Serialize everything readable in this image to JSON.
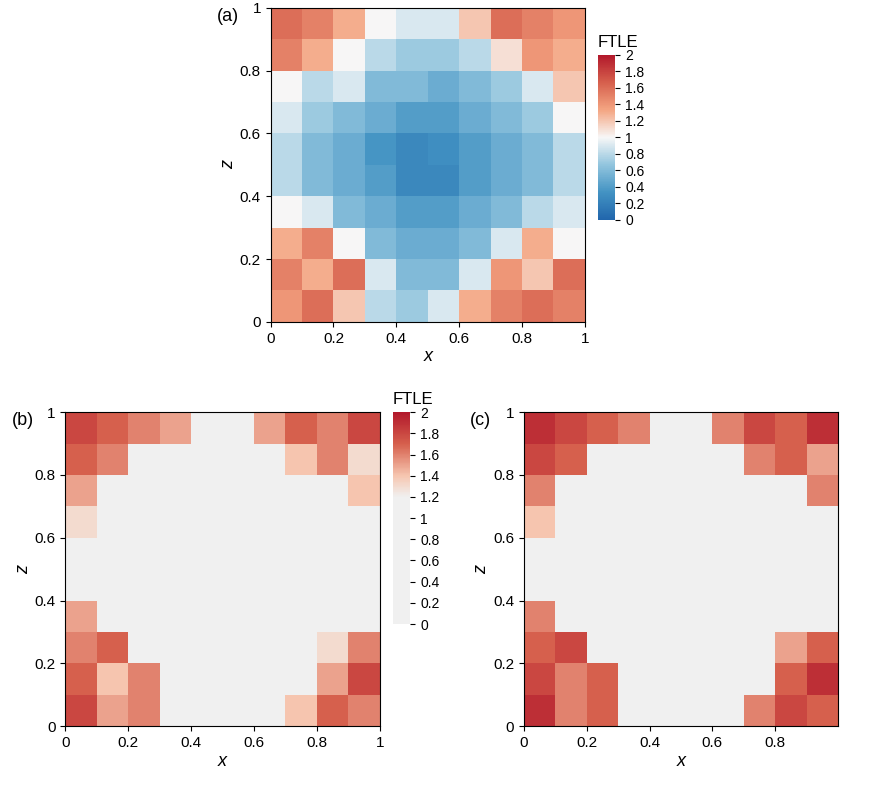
{
  "chart_data": [
    {
      "type": "heatmap",
      "panel_label": "(a)",
      "xlabel": "x",
      "ylabel": "z",
      "x": [
        0.05,
        0.15,
        0.25,
        0.35,
        0.45,
        0.55,
        0.65,
        0.75,
        0.85,
        0.95
      ],
      "y": [
        0.05,
        0.15,
        0.25,
        0.35,
        0.45,
        0.55,
        0.65,
        0.75,
        0.85,
        0.95
      ],
      "xlim": [
        0,
        1
      ],
      "ylim": [
        0,
        1
      ],
      "xticks": [
        0,
        0.2,
        0.4,
        0.6,
        0.8,
        1
      ],
      "yticks": [
        0,
        0.2,
        0.4,
        0.6,
        0.8,
        1
      ],
      "cells": [
        [
          1.4,
          1.6,
          1.2,
          0.8,
          0.7,
          0.9,
          1.3,
          1.5,
          1.6,
          1.5
        ],
        [
          1.5,
          1.3,
          1.6,
          0.9,
          0.6,
          0.6,
          0.9,
          1.4,
          1.2,
          1.6
        ],
        [
          1.3,
          1.5,
          1.0,
          0.6,
          0.5,
          0.5,
          0.6,
          0.9,
          1.3,
          1.0
        ],
        [
          1.0,
          0.9,
          0.6,
          0.5,
          0.4,
          0.4,
          0.5,
          0.6,
          0.8,
          0.9
        ],
        [
          0.8,
          0.6,
          0.5,
          0.4,
          0.25,
          0.25,
          0.4,
          0.5,
          0.6,
          0.8
        ],
        [
          0.8,
          0.6,
          0.5,
          0.35,
          0.25,
          0.3,
          0.4,
          0.5,
          0.6,
          0.8
        ],
        [
          0.9,
          0.7,
          0.6,
          0.5,
          0.4,
          0.4,
          0.5,
          0.6,
          0.7,
          1.0
        ],
        [
          1.0,
          0.8,
          0.9,
          0.6,
          0.6,
          0.5,
          0.6,
          0.7,
          0.9,
          1.2
        ],
        [
          1.5,
          1.3,
          1.0,
          0.8,
          0.7,
          0.7,
          0.8,
          1.1,
          1.4,
          1.3
        ],
        [
          1.6,
          1.5,
          1.3,
          1.0,
          0.9,
          0.9,
          1.2,
          1.6,
          1.5,
          1.4
        ]
      ],
      "colorbar": {
        "label": "FTLE",
        "range": [
          0,
          2
        ],
        "ticks": [
          0,
          0.2,
          0.4,
          0.6,
          0.8,
          1,
          1.2,
          1.4,
          1.6,
          1.8,
          2
        ]
      }
    },
    {
      "type": "heatmap",
      "panel_label": "(b)",
      "xlabel": "x",
      "ylabel": "z",
      "x": [
        0.05,
        0.15,
        0.25,
        0.35,
        0.45,
        0.55,
        0.65,
        0.75,
        0.85,
        0.95
      ],
      "y": [
        0.05,
        0.15,
        0.25,
        0.35,
        0.45,
        0.55,
        0.65,
        0.75,
        0.85,
        0.95
      ],
      "xlim": [
        0,
        1
      ],
      "ylim": [
        0,
        1
      ],
      "xticks": [
        0,
        0.2,
        0.4,
        0.6,
        0.8,
        1
      ],
      "yticks": [
        0,
        0.2,
        0.4,
        0.6,
        0.8,
        1
      ],
      "cells": [
        [
          1.8,
          1.5,
          1.6,
          0.1,
          0.1,
          0.1,
          0.2,
          1.4,
          1.7,
          1.6
        ],
        [
          1.7,
          1.4,
          1.6,
          0.1,
          0,
          0,
          0.1,
          0.3,
          1.5,
          1.8
        ],
        [
          1.6,
          1.7,
          0.3,
          0,
          0,
          0,
          0,
          0.1,
          1.3,
          1.6
        ],
        [
          1.5,
          0.2,
          0,
          0,
          0,
          0,
          0,
          0,
          0.1,
          0.2
        ],
        [
          0.3,
          0,
          0,
          0,
          0,
          0,
          0,
          0,
          0,
          0.1
        ],
        [
          0.2,
          0,
          0,
          0,
          0,
          0,
          0,
          0,
          0,
          0.1
        ],
        [
          1.3,
          0,
          0,
          0,
          0,
          0,
          0,
          0,
          0,
          0.2
        ],
        [
          1.5,
          0.2,
          0,
          0,
          0,
          0,
          0,
          0,
          0.2,
          1.4
        ],
        [
          1.7,
          1.6,
          0.3,
          0,
          0,
          0,
          0,
          1.4,
          1.6,
          1.3
        ],
        [
          1.8,
          1.7,
          1.6,
          1.5,
          0.2,
          0.2,
          1.5,
          1.7,
          1.6,
          1.8
        ]
      ],
      "colorbar": {
        "label": "FTLE",
        "range": [
          0,
          2
        ],
        "ticks": [
          0,
          0.2,
          0.4,
          0.6,
          0.8,
          1,
          1.2,
          1.4,
          1.6,
          1.8,
          2
        ]
      }
    },
    {
      "type": "heatmap",
      "panel_label": "(c)",
      "xlabel": "x",
      "ylabel": "z",
      "x": [
        0.05,
        0.15,
        0.25,
        0.35,
        0.45,
        0.55,
        0.65,
        0.75,
        0.85,
        0.95
      ],
      "y": [
        0.05,
        0.15,
        0.25,
        0.35,
        0.45,
        0.55,
        0.65,
        0.75,
        0.85,
        0.95
      ],
      "xlim": [
        0,
        1
      ],
      "ylim": [
        0,
        1
      ],
      "xticks": [
        0,
        0.2,
        0.4,
        0.6,
        0.8
      ],
      "yticks": [
        0,
        0.2,
        0.4,
        0.6,
        0.8,
        1
      ],
      "cells": [
        [
          1.9,
          1.6,
          1.7,
          0.2,
          0.1,
          0.1,
          0.3,
          1.6,
          1.8,
          1.7
        ],
        [
          1.8,
          1.6,
          1.7,
          0.1,
          0,
          0,
          0.1,
          0.4,
          1.7,
          1.9
        ],
        [
          1.7,
          1.8,
          0.4,
          0,
          0,
          0,
          0,
          0.2,
          1.5,
          1.7
        ],
        [
          1.6,
          0.3,
          0,
          0,
          0,
          0,
          0,
          0,
          0.1,
          0.3
        ],
        [
          0.4,
          0,
          0,
          0,
          0,
          0,
          0,
          0,
          0,
          0.2
        ],
        [
          0.3,
          0,
          0,
          0,
          0,
          0,
          0,
          0,
          0,
          0.3
        ],
        [
          1.4,
          0,
          0,
          0,
          0,
          0,
          0,
          0,
          0,
          0.3
        ],
        [
          1.6,
          0.3,
          0,
          0,
          0,
          0,
          0,
          0,
          0.3,
          1.6
        ],
        [
          1.8,
          1.7,
          0.4,
          0,
          0,
          0,
          0,
          1.6,
          1.7,
          1.5
        ],
        [
          1.9,
          1.8,
          1.7,
          1.6,
          0.3,
          0.3,
          1.6,
          1.8,
          1.7,
          1.9
        ]
      ]
    }
  ]
}
